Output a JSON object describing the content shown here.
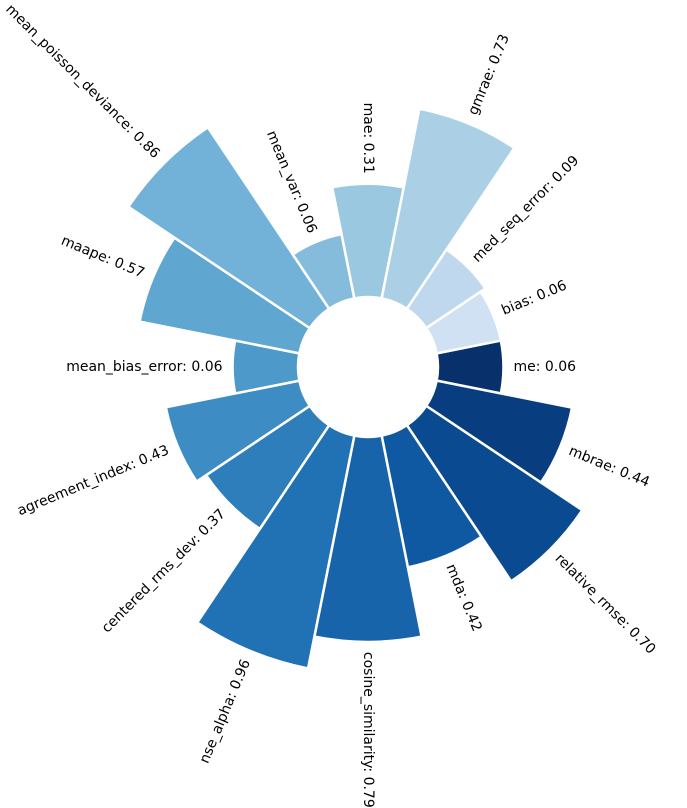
{
  "chart_data": {
    "type": "polar-bar",
    "categories": [
      "me: 0.06",
      "mbrae: 0.44",
      "relative_rmse: 0.70",
      "mda: 0.42",
      "cosine_similarity: 0.79",
      "nse_alpha: 0.96",
      "centered_rms_dev: 0.37",
      "agreement_index: 0.43",
      "mean_bias_error: 0.06",
      "maape: 0.57",
      "mean_poisson_deviance: 0.86",
      "mean_var: 0.06",
      "mae: 0.31",
      "gmrae: 0.73",
      "med_seq_error: 0.09",
      "bias: 0.06"
    ],
    "values": [
      0.06,
      0.44,
      0.7,
      0.42,
      0.79,
      0.96,
      0.37,
      0.43,
      0.06,
      0.57,
      0.86,
      0.06,
      0.31,
      0.73,
      0.09,
      0.06
    ],
    "colors": [
      "#08306b",
      "#083d7f",
      "#0a4a90",
      "#0e59a2",
      "#1764ab",
      "#2171b5",
      "#2e7ebc",
      "#3d8dc4",
      "#4d99ca",
      "#5fa6d1",
      "#72b2d8",
      "#85bcdc",
      "#9ac8e0",
      "#abd0e6",
      "#c0d8ed",
      "#cfe1f2"
    ]
  }
}
